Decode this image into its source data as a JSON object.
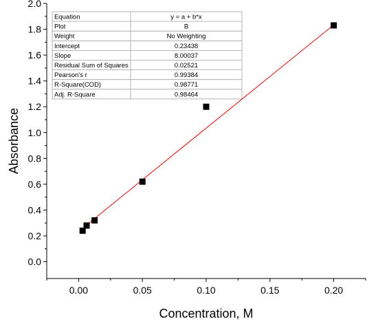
{
  "chart_data": {
    "type": "scatter",
    "xlabel": "Concentration, M",
    "ylabel": "Absorbance",
    "xlim": [
      -0.025,
      0.225
    ],
    "ylim": [
      -0.13,
      2.0
    ],
    "x_ticks": [
      "0.00",
      "0.05",
      "0.10",
      "0.15",
      "0.20"
    ],
    "x_tick_values": [
      0.0,
      0.05,
      0.1,
      0.15,
      0.2
    ],
    "y_ticks": [
      "0.0",
      "0.2",
      "0.4",
      "0.6",
      "0.8",
      "1.0",
      "1.2",
      "1.4",
      "1.6",
      "1.8",
      "2.0"
    ],
    "y_tick_values": [
      0.0,
      0.2,
      0.4,
      0.6,
      0.8,
      1.0,
      1.2,
      1.4,
      1.6,
      1.8,
      2.0
    ],
    "series": [
      {
        "type": "scatter",
        "x": [
          0.003125,
          0.00625,
          0.0125,
          0.05,
          0.1,
          0.2
        ],
        "y": [
          0.24,
          0.28,
          0.32,
          0.62,
          1.2,
          1.83
        ],
        "color": "#000000"
      },
      {
        "type": "line",
        "x_range": [
          0.006,
          0.2
        ],
        "intercept": 0.23438,
        "slope": 8.00037,
        "color": "#ff0000"
      }
    ],
    "stats_table": [
      {
        "key": "Equation",
        "value": "y = a + b*x"
      },
      {
        "key": "Plot",
        "value": "B"
      },
      {
        "key": "Weight",
        "value": "No Weighting"
      },
      {
        "key": "Intercept",
        "value": "0.23438"
      },
      {
        "key": "Slope",
        "value": "8.00037"
      },
      {
        "key": "Residual Sum of Squares",
        "value": "0.02521"
      },
      {
        "key": "Pearson's r",
        "value": "0.99384"
      },
      {
        "key": "R-Square(COD)",
        "value": "0.98771"
      },
      {
        "key": "Adj. R-Square",
        "value": "0.98464"
      }
    ],
    "grid": false,
    "legend": "none"
  }
}
